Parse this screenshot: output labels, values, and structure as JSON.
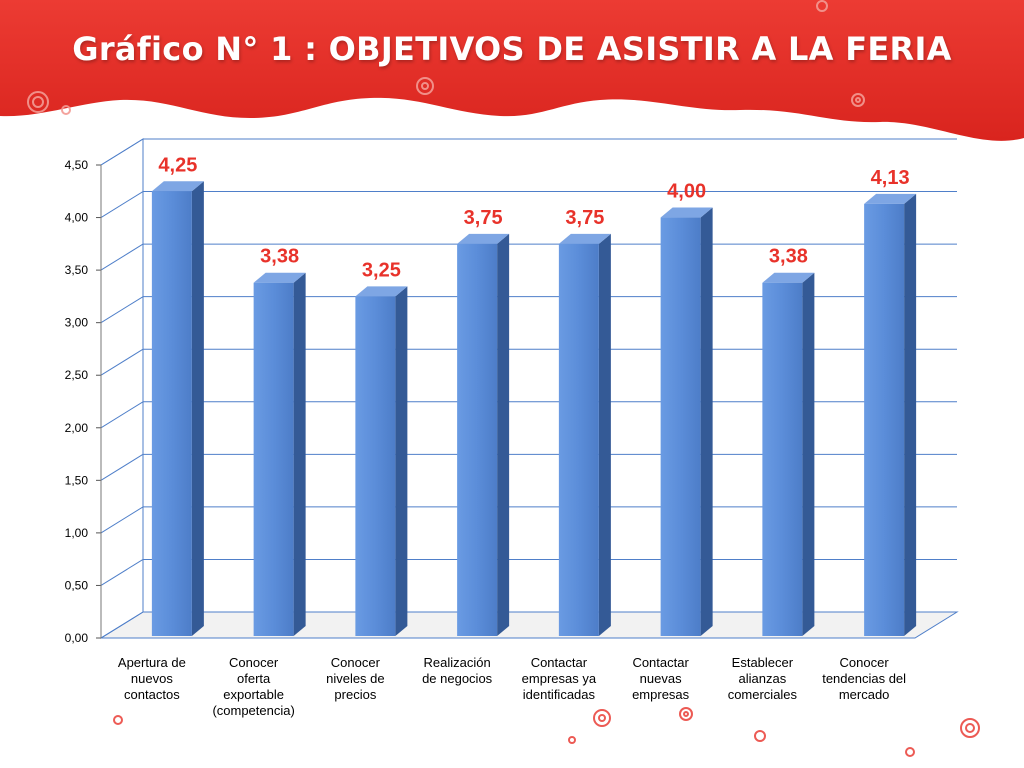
{
  "title": "Gráfico N° 1 : OBJETIVOS DE ASISTIR A LA FERIA",
  "colors": {
    "banner": "#e8322a",
    "banner_dark": "#c81f1a",
    "bar_front": "#5b8dd9",
    "bar_side": "#345a96",
    "bar_top": "#7ea6e4",
    "data_label": "#e8322a",
    "grid": "#4f7fc9"
  },
  "chart_data": {
    "type": "bar",
    "categories": [
      "Apertura de nuevos contactos",
      "Conocer oferta exportable (competencia)",
      "Conocer niveles de precios",
      "Realización de negocios",
      "Contactar empresas ya identificadas",
      "Contactar nuevas empresas",
      "Establecer alianzas comerciales",
      "Conocer tendencias del mercado"
    ],
    "category_lines": [
      [
        "Apertura de",
        "nuevos",
        "contactos"
      ],
      [
        "Conocer",
        "oferta",
        "exportable",
        "(competencia)"
      ],
      [
        "Conocer",
        "niveles de",
        "precios"
      ],
      [
        "Realización",
        "de negocios"
      ],
      [
        "Contactar",
        "empresas ya",
        "identificadas"
      ],
      [
        "Contactar",
        "nuevas",
        "empresas"
      ],
      [
        "Establecer",
        "alianzas",
        "comerciales"
      ],
      [
        "Conocer",
        "tendencias del",
        "mercado"
      ]
    ],
    "values": [
      4.25,
      3.38,
      3.25,
      3.75,
      3.75,
      4.0,
      3.38,
      4.13
    ],
    "value_labels": [
      "4,25",
      "3,38",
      "3,25",
      "3,75",
      "3,75",
      "4,00",
      "3,38",
      "4,13"
    ],
    "ylim": [
      0,
      4.5
    ],
    "yticks": [
      "0,00",
      "0,50",
      "1,00",
      "1,50",
      "2,00",
      "2,50",
      "3,00",
      "3,50",
      "4,00",
      "4,50"
    ],
    "grid": true,
    "xlabel": "",
    "ylabel": ""
  }
}
